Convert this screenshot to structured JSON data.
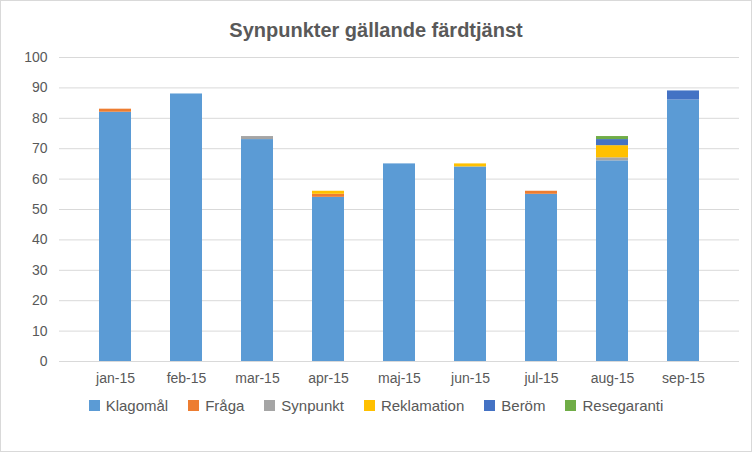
{
  "chart_data": {
    "type": "bar",
    "title": "Synpunkter gällande färdtjänst",
    "stacked": true,
    "grid": true,
    "legend": "bottom",
    "categories": [
      "jan-15",
      "feb-15",
      "mar-15",
      "apr-15",
      "maj-15",
      "jun-15",
      "jul-15",
      "aug-15",
      "sep-15"
    ],
    "series": [
      {
        "name": "Klagomål",
        "color": "#5b9bd5",
        "values": [
          82,
          88,
          73,
          54,
          65,
          64,
          55,
          66,
          86
        ]
      },
      {
        "name": "Fråga",
        "color": "#ed7d31",
        "values": [
          1,
          0,
          0,
          1,
          0,
          0,
          1,
          0,
          0
        ]
      },
      {
        "name": "Synpunkt",
        "color": "#a5a5a5",
        "values": [
          0,
          0,
          1,
          0,
          0,
          0,
          0,
          1,
          0
        ]
      },
      {
        "name": "Reklamation",
        "color": "#ffc000",
        "values": [
          0,
          0,
          0,
          1,
          0,
          1,
          0,
          4,
          0
        ]
      },
      {
        "name": "Beröm",
        "color": "#4472c4",
        "values": [
          0,
          0,
          0,
          0,
          0,
          0,
          0,
          2,
          3
        ]
      },
      {
        "name": "Resegaranti",
        "color": "#70ad47",
        "values": [
          0,
          0,
          0,
          0,
          0,
          0,
          0,
          1,
          0
        ]
      }
    ],
    "ylim": [
      0,
      100
    ],
    "yticks": [
      0,
      10,
      20,
      30,
      40,
      50,
      60,
      70,
      80,
      90,
      100
    ]
  }
}
